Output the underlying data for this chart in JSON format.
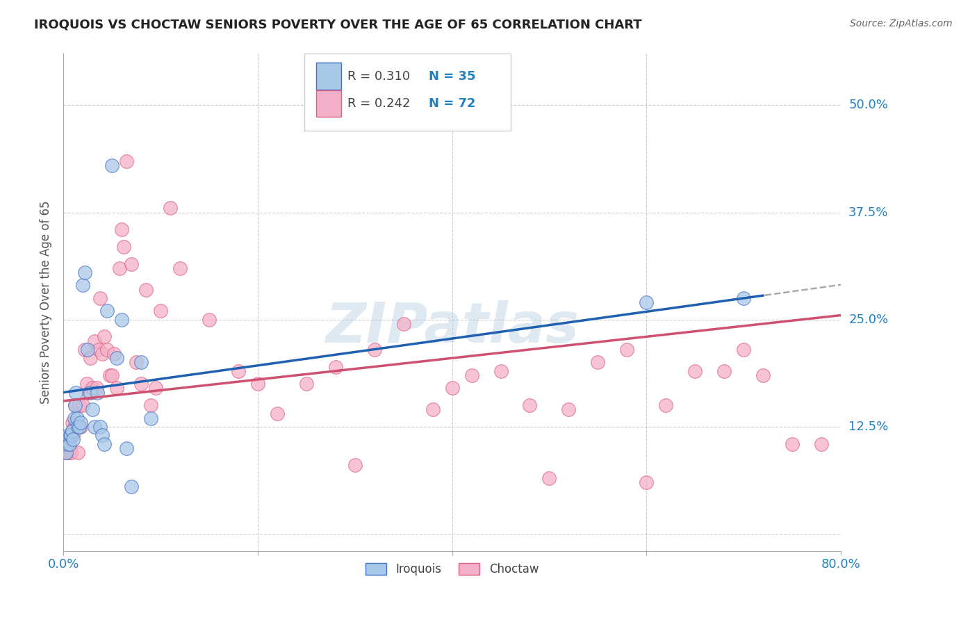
{
  "title": "IROQUOIS VS CHOCTAW SENIORS POVERTY OVER THE AGE OF 65 CORRELATION CHART",
  "source": "Source: ZipAtlas.com",
  "ylabel": "Seniors Poverty Over the Age of 65",
  "xlim": [
    0.0,
    0.8
  ],
  "ylim": [
    -0.02,
    0.56
  ],
  "xticks": [
    0.0,
    0.2,
    0.4,
    0.6,
    0.8
  ],
  "xtick_labels": [
    "0.0%",
    "",
    "",
    "",
    "80.0%"
  ],
  "yticks": [
    0.0,
    0.125,
    0.25,
    0.375,
    0.5
  ],
  "ytick_labels": [
    "",
    "12.5%",
    "25.0%",
    "37.5%",
    "50.0%"
  ],
  "iroquois_color": "#a8c8e8",
  "choctaw_color": "#f4b0c8",
  "iroquois_edge_color": "#4472c4",
  "choctaw_edge_color": "#e06080",
  "iroquois_line_color": "#2060b0",
  "choctaw_line_color": "#d05070",
  "iroquois_R": 0.31,
  "iroquois_N": 35,
  "choctaw_R": 0.242,
  "choctaw_N": 72,
  "legend_R_color": "#444444",
  "legend_N_color": "#2080c0",
  "background_color": "#ffffff",
  "grid_color": "#cccccc",
  "watermark": "ZIPatlas",
  "iroquois_x": [
    0.003,
    0.004,
    0.005,
    0.006,
    0.007,
    0.008,
    0.009,
    0.01,
    0.011,
    0.012,
    0.013,
    0.014,
    0.015,
    0.016,
    0.018,
    0.02,
    0.022,
    0.025,
    0.028,
    0.03,
    0.032,
    0.035,
    0.038,
    0.04,
    0.042,
    0.045,
    0.05,
    0.055,
    0.06,
    0.065,
    0.07,
    0.08,
    0.09,
    0.6,
    0.7
  ],
  "iroquois_y": [
    0.095,
    0.105,
    0.115,
    0.105,
    0.115,
    0.115,
    0.12,
    0.11,
    0.135,
    0.15,
    0.165,
    0.135,
    0.125,
    0.125,
    0.13,
    0.29,
    0.305,
    0.215,
    0.165,
    0.145,
    0.125,
    0.165,
    0.125,
    0.115,
    0.105,
    0.26,
    0.43,
    0.205,
    0.25,
    0.1,
    0.055,
    0.2,
    0.135,
    0.27,
    0.275
  ],
  "choctaw_x": [
    0.002,
    0.003,
    0.004,
    0.005,
    0.006,
    0.007,
    0.008,
    0.009,
    0.01,
    0.011,
    0.012,
    0.013,
    0.014,
    0.015,
    0.016,
    0.018,
    0.02,
    0.022,
    0.024,
    0.026,
    0.028,
    0.03,
    0.032,
    0.034,
    0.036,
    0.038,
    0.04,
    0.042,
    0.045,
    0.048,
    0.05,
    0.052,
    0.055,
    0.058,
    0.06,
    0.062,
    0.065,
    0.07,
    0.075,
    0.08,
    0.085,
    0.09,
    0.095,
    0.1,
    0.11,
    0.12,
    0.15,
    0.18,
    0.2,
    0.22,
    0.25,
    0.28,
    0.3,
    0.32,
    0.35,
    0.38,
    0.4,
    0.42,
    0.45,
    0.48,
    0.5,
    0.52,
    0.55,
    0.58,
    0.6,
    0.62,
    0.65,
    0.68,
    0.7,
    0.72,
    0.75,
    0.78
  ],
  "choctaw_y": [
    0.095,
    0.105,
    0.095,
    0.095,
    0.1,
    0.1,
    0.095,
    0.13,
    0.115,
    0.125,
    0.15,
    0.13,
    0.13,
    0.095,
    0.15,
    0.125,
    0.15,
    0.215,
    0.175,
    0.165,
    0.205,
    0.17,
    0.225,
    0.17,
    0.215,
    0.275,
    0.21,
    0.23,
    0.215,
    0.185,
    0.185,
    0.21,
    0.17,
    0.31,
    0.355,
    0.335,
    0.435,
    0.315,
    0.2,
    0.175,
    0.285,
    0.15,
    0.17,
    0.26,
    0.38,
    0.31,
    0.25,
    0.19,
    0.175,
    0.14,
    0.175,
    0.195,
    0.08,
    0.215,
    0.245,
    0.145,
    0.17,
    0.185,
    0.19,
    0.15,
    0.065,
    0.145,
    0.2,
    0.215,
    0.06,
    0.15,
    0.19,
    0.19,
    0.215,
    0.185,
    0.105,
    0.105
  ]
}
